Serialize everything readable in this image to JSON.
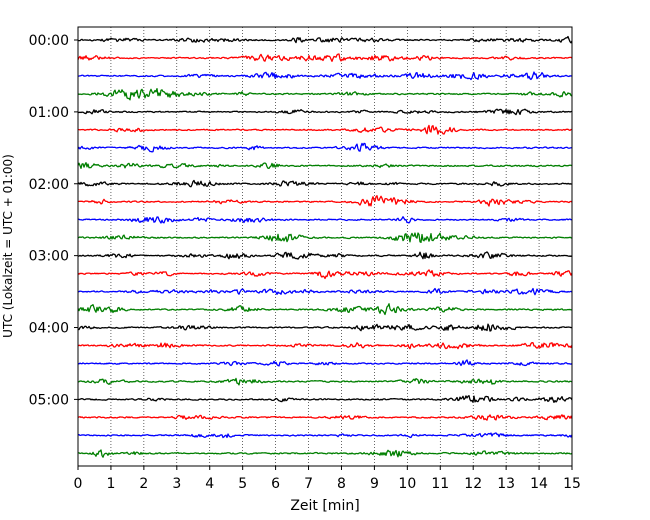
{
  "chart_data": {
    "type": "line",
    "title": "",
    "xlabel": "Zeit  [min]",
    "ylabel": "UTC (Lokalzeit = UTC + 01:00)",
    "xlim": [
      0,
      15
    ],
    "x_ticks": [
      "0",
      "1",
      "2",
      "3",
      "4",
      "5",
      "6",
      "7",
      "8",
      "9",
      "10",
      "11",
      "12",
      "13",
      "14",
      "15"
    ],
    "y_ticks": [
      "00:00",
      "01:00",
      "02:00",
      "03:00",
      "04:00",
      "05:00"
    ],
    "grid": "vertical dotted",
    "trace_colors": [
      "#000000",
      "#ff0000",
      "#0000ff",
      "#007f00"
    ],
    "traces": [
      {
        "start": "00:00",
        "color": "#000000"
      },
      {
        "start": "00:15",
        "color": "#ff0000"
      },
      {
        "start": "00:30",
        "color": "#0000ff"
      },
      {
        "start": "00:45",
        "color": "#007f00"
      },
      {
        "start": "01:00",
        "color": "#000000"
      },
      {
        "start": "01:15",
        "color": "#ff0000"
      },
      {
        "start": "01:30",
        "color": "#0000ff"
      },
      {
        "start": "01:45",
        "color": "#007f00"
      },
      {
        "start": "02:00",
        "color": "#000000"
      },
      {
        "start": "02:15",
        "color": "#ff0000"
      },
      {
        "start": "02:30",
        "color": "#0000ff"
      },
      {
        "start": "02:45",
        "color": "#007f00"
      },
      {
        "start": "03:00",
        "color": "#000000"
      },
      {
        "start": "03:15",
        "color": "#ff0000"
      },
      {
        "start": "03:30",
        "color": "#0000ff"
      },
      {
        "start": "03:45",
        "color": "#007f00"
      },
      {
        "start": "04:00",
        "color": "#000000"
      },
      {
        "start": "04:15",
        "color": "#ff0000"
      },
      {
        "start": "04:30",
        "color": "#0000ff"
      },
      {
        "start": "04:45",
        "color": "#007f00"
      },
      {
        "start": "05:00",
        "color": "#000000"
      },
      {
        "start": "05:15",
        "color": "#ff0000"
      },
      {
        "start": "05:30",
        "color": "#0000ff"
      },
      {
        "start": "05:45",
        "color": "#007f00"
      }
    ]
  }
}
